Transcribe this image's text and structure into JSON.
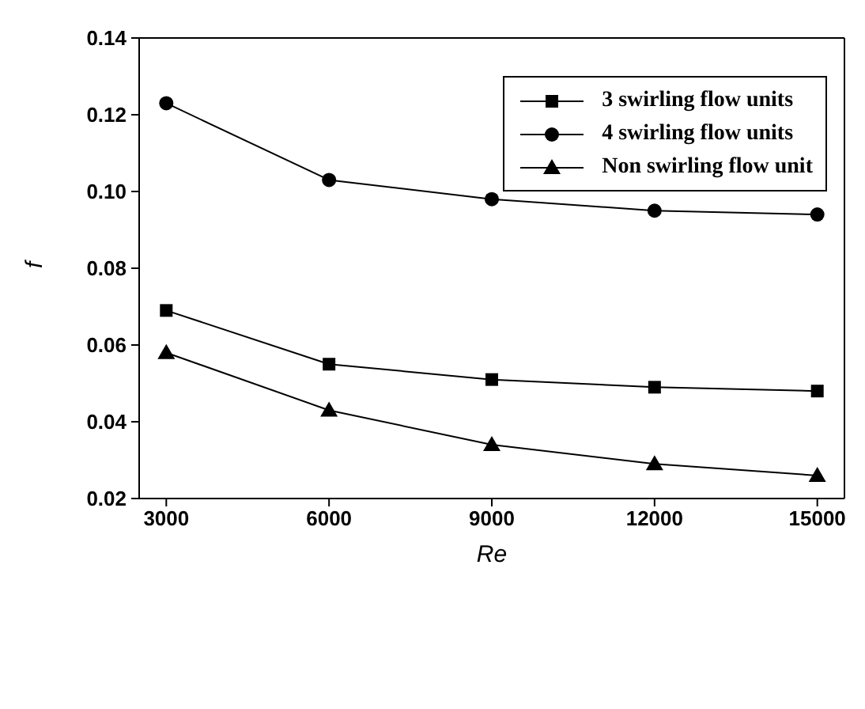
{
  "chart_data": {
    "type": "line",
    "xlabel": "Re",
    "ylabel": "f",
    "x": [
      3000,
      6000,
      9000,
      12000,
      15000
    ],
    "xlim": [
      2500,
      15500
    ],
    "xticks": [
      3000,
      6000,
      9000,
      12000,
      15000
    ],
    "ylim": [
      0.02,
      0.14
    ],
    "yticks": [
      {
        "value": 0.02,
        "label": "0.02"
      },
      {
        "value": 0.04,
        "label": "0.04"
      },
      {
        "value": 0.06,
        "label": "0.06"
      },
      {
        "value": 0.08,
        "label": "0.08"
      },
      {
        "value": 0.1,
        "label": "0.10"
      },
      {
        "value": 0.12,
        "label": "0.12"
      },
      {
        "value": 0.14,
        "label": "0.14"
      }
    ],
    "legend": "top right",
    "grid": false,
    "series": [
      {
        "name": "3 swirling flow units",
        "color": "#000000",
        "marker": "square",
        "values": [
          0.069,
          0.055,
          0.051,
          0.049,
          0.048
        ]
      },
      {
        "name": "4 swirling flow units",
        "color": "#000000",
        "marker": "circle",
        "values": [
          0.123,
          0.103,
          0.098,
          0.095,
          0.094
        ]
      },
      {
        "name": "Non swirling flow unit",
        "color": "#000000",
        "marker": "triangle",
        "values": [
          0.058,
          0.043,
          0.034,
          0.029,
          0.026
        ]
      }
    ]
  }
}
